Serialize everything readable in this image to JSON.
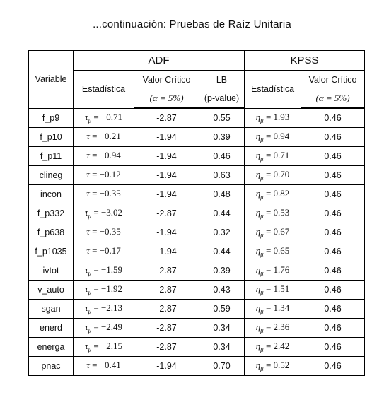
{
  "title": "...continuación: Pruebas de Raíz Unitaria",
  "header": {
    "variable": "Variable",
    "group_adf": "ADF",
    "group_kpss": "KPSS",
    "adf_estadistica": "Estadística",
    "adf_valor_critico": "Valor Crítico",
    "adf_alpha": "(α = 5%)",
    "lb": "LB",
    "lb_sub": "(p-value)",
    "kpss_estadistica": "Estadística",
    "kpss_valor_critico": "Valor Crítico",
    "kpss_alpha": "(α = 5%)"
  },
  "rows": [
    {
      "variable": "f_p9",
      "adf_sym": "τ",
      "adf_sub": "μ",
      "adf_val": "−0.71",
      "adf_crit": "-2.87",
      "lb": "0.55",
      "kpss_sym": "η",
      "kpss_sub": "μ",
      "kpss_val": "1.93",
      "kpss_crit": "0.46"
    },
    {
      "variable": "f_p10",
      "adf_sym": "τ",
      "adf_sub": "",
      "adf_val": "−0.21",
      "adf_crit": "-1.94",
      "lb": "0.39",
      "kpss_sym": "η",
      "kpss_sub": "μ",
      "kpss_val": "0.94",
      "kpss_crit": "0.46"
    },
    {
      "variable": "f_p11",
      "adf_sym": "τ",
      "adf_sub": "",
      "adf_val": "−0.94",
      "adf_crit": "-1.94",
      "lb": "0.46",
      "kpss_sym": "η",
      "kpss_sub": "μ",
      "kpss_val": "0.71",
      "kpss_crit": "0.46"
    },
    {
      "variable": "clineg",
      "adf_sym": "τ",
      "adf_sub": "",
      "adf_val": "−0.12",
      "adf_crit": "-1.94",
      "lb": "0.63",
      "kpss_sym": "η",
      "kpss_sub": "μ",
      "kpss_val": "0.70",
      "kpss_crit": "0.46"
    },
    {
      "variable": "incon",
      "adf_sym": "τ",
      "adf_sub": "",
      "adf_val": "−0.35",
      "adf_crit": "-1.94",
      "lb": "0.48",
      "kpss_sym": "η",
      "kpss_sub": "μ",
      "kpss_val": "0.82",
      "kpss_crit": "0.46"
    },
    {
      "variable": "f_p332",
      "adf_sym": "τ",
      "adf_sub": "μ",
      "adf_val": "−3.02",
      "adf_crit": "-2.87",
      "lb": "0.44",
      "kpss_sym": "η",
      "kpss_sub": "μ",
      "kpss_val": "0.53",
      "kpss_crit": "0.46"
    },
    {
      "variable": "f_p638",
      "adf_sym": "τ",
      "adf_sub": "",
      "adf_val": "−0.35",
      "adf_crit": "-1.94",
      "lb": "0.32",
      "kpss_sym": "η",
      "kpss_sub": "μ",
      "kpss_val": "0.67",
      "kpss_crit": "0.46"
    },
    {
      "variable": "f_p1035",
      "adf_sym": "τ",
      "adf_sub": "",
      "adf_val": "−0.17",
      "adf_crit": "-1.94",
      "lb": "0.44",
      "kpss_sym": "η",
      "kpss_sub": "μ",
      "kpss_val": "0.65",
      "kpss_crit": "0.46"
    },
    {
      "variable": "ivtot",
      "adf_sym": "τ",
      "adf_sub": "μ",
      "adf_val": "−1.59",
      "adf_crit": "-2.87",
      "lb": "0.39",
      "kpss_sym": "η",
      "kpss_sub": "μ",
      "kpss_val": "1.76",
      "kpss_crit": "0.46"
    },
    {
      "variable": "v_auto",
      "adf_sym": "τ",
      "adf_sub": "μ",
      "adf_val": "−1.92",
      "adf_crit": "-2.87",
      "lb": "0.43",
      "kpss_sym": "η",
      "kpss_sub": "μ",
      "kpss_val": "1.51",
      "kpss_crit": "0.46"
    },
    {
      "variable": "sgan",
      "adf_sym": "τ",
      "adf_sub": "μ",
      "adf_val": "−2.13",
      "adf_crit": "-2.87",
      "lb": "0.59",
      "kpss_sym": "η",
      "kpss_sub": "μ",
      "kpss_val": "1.34",
      "kpss_crit": "0.46"
    },
    {
      "variable": "enerd",
      "adf_sym": "τ",
      "adf_sub": "μ",
      "adf_val": "−2.49",
      "adf_crit": "-2.87",
      "lb": "0.34",
      "kpss_sym": "η",
      "kpss_sub": "μ",
      "kpss_val": "2.36",
      "kpss_crit": "0.46"
    },
    {
      "variable": "energa",
      "adf_sym": "τ",
      "adf_sub": "μ",
      "adf_val": "−2.15",
      "adf_crit": "-2.87",
      "lb": "0.34",
      "kpss_sym": "η",
      "kpss_sub": "μ",
      "kpss_val": "2.42",
      "kpss_crit": "0.46"
    },
    {
      "variable": "pnac",
      "adf_sym": "τ",
      "adf_sub": "",
      "adf_val": "−0.41",
      "adf_crit": "-1.94",
      "lb": "0.70",
      "kpss_sym": "η",
      "kpss_sub": "μ",
      "kpss_val": "0.52",
      "kpss_crit": "0.46"
    }
  ]
}
